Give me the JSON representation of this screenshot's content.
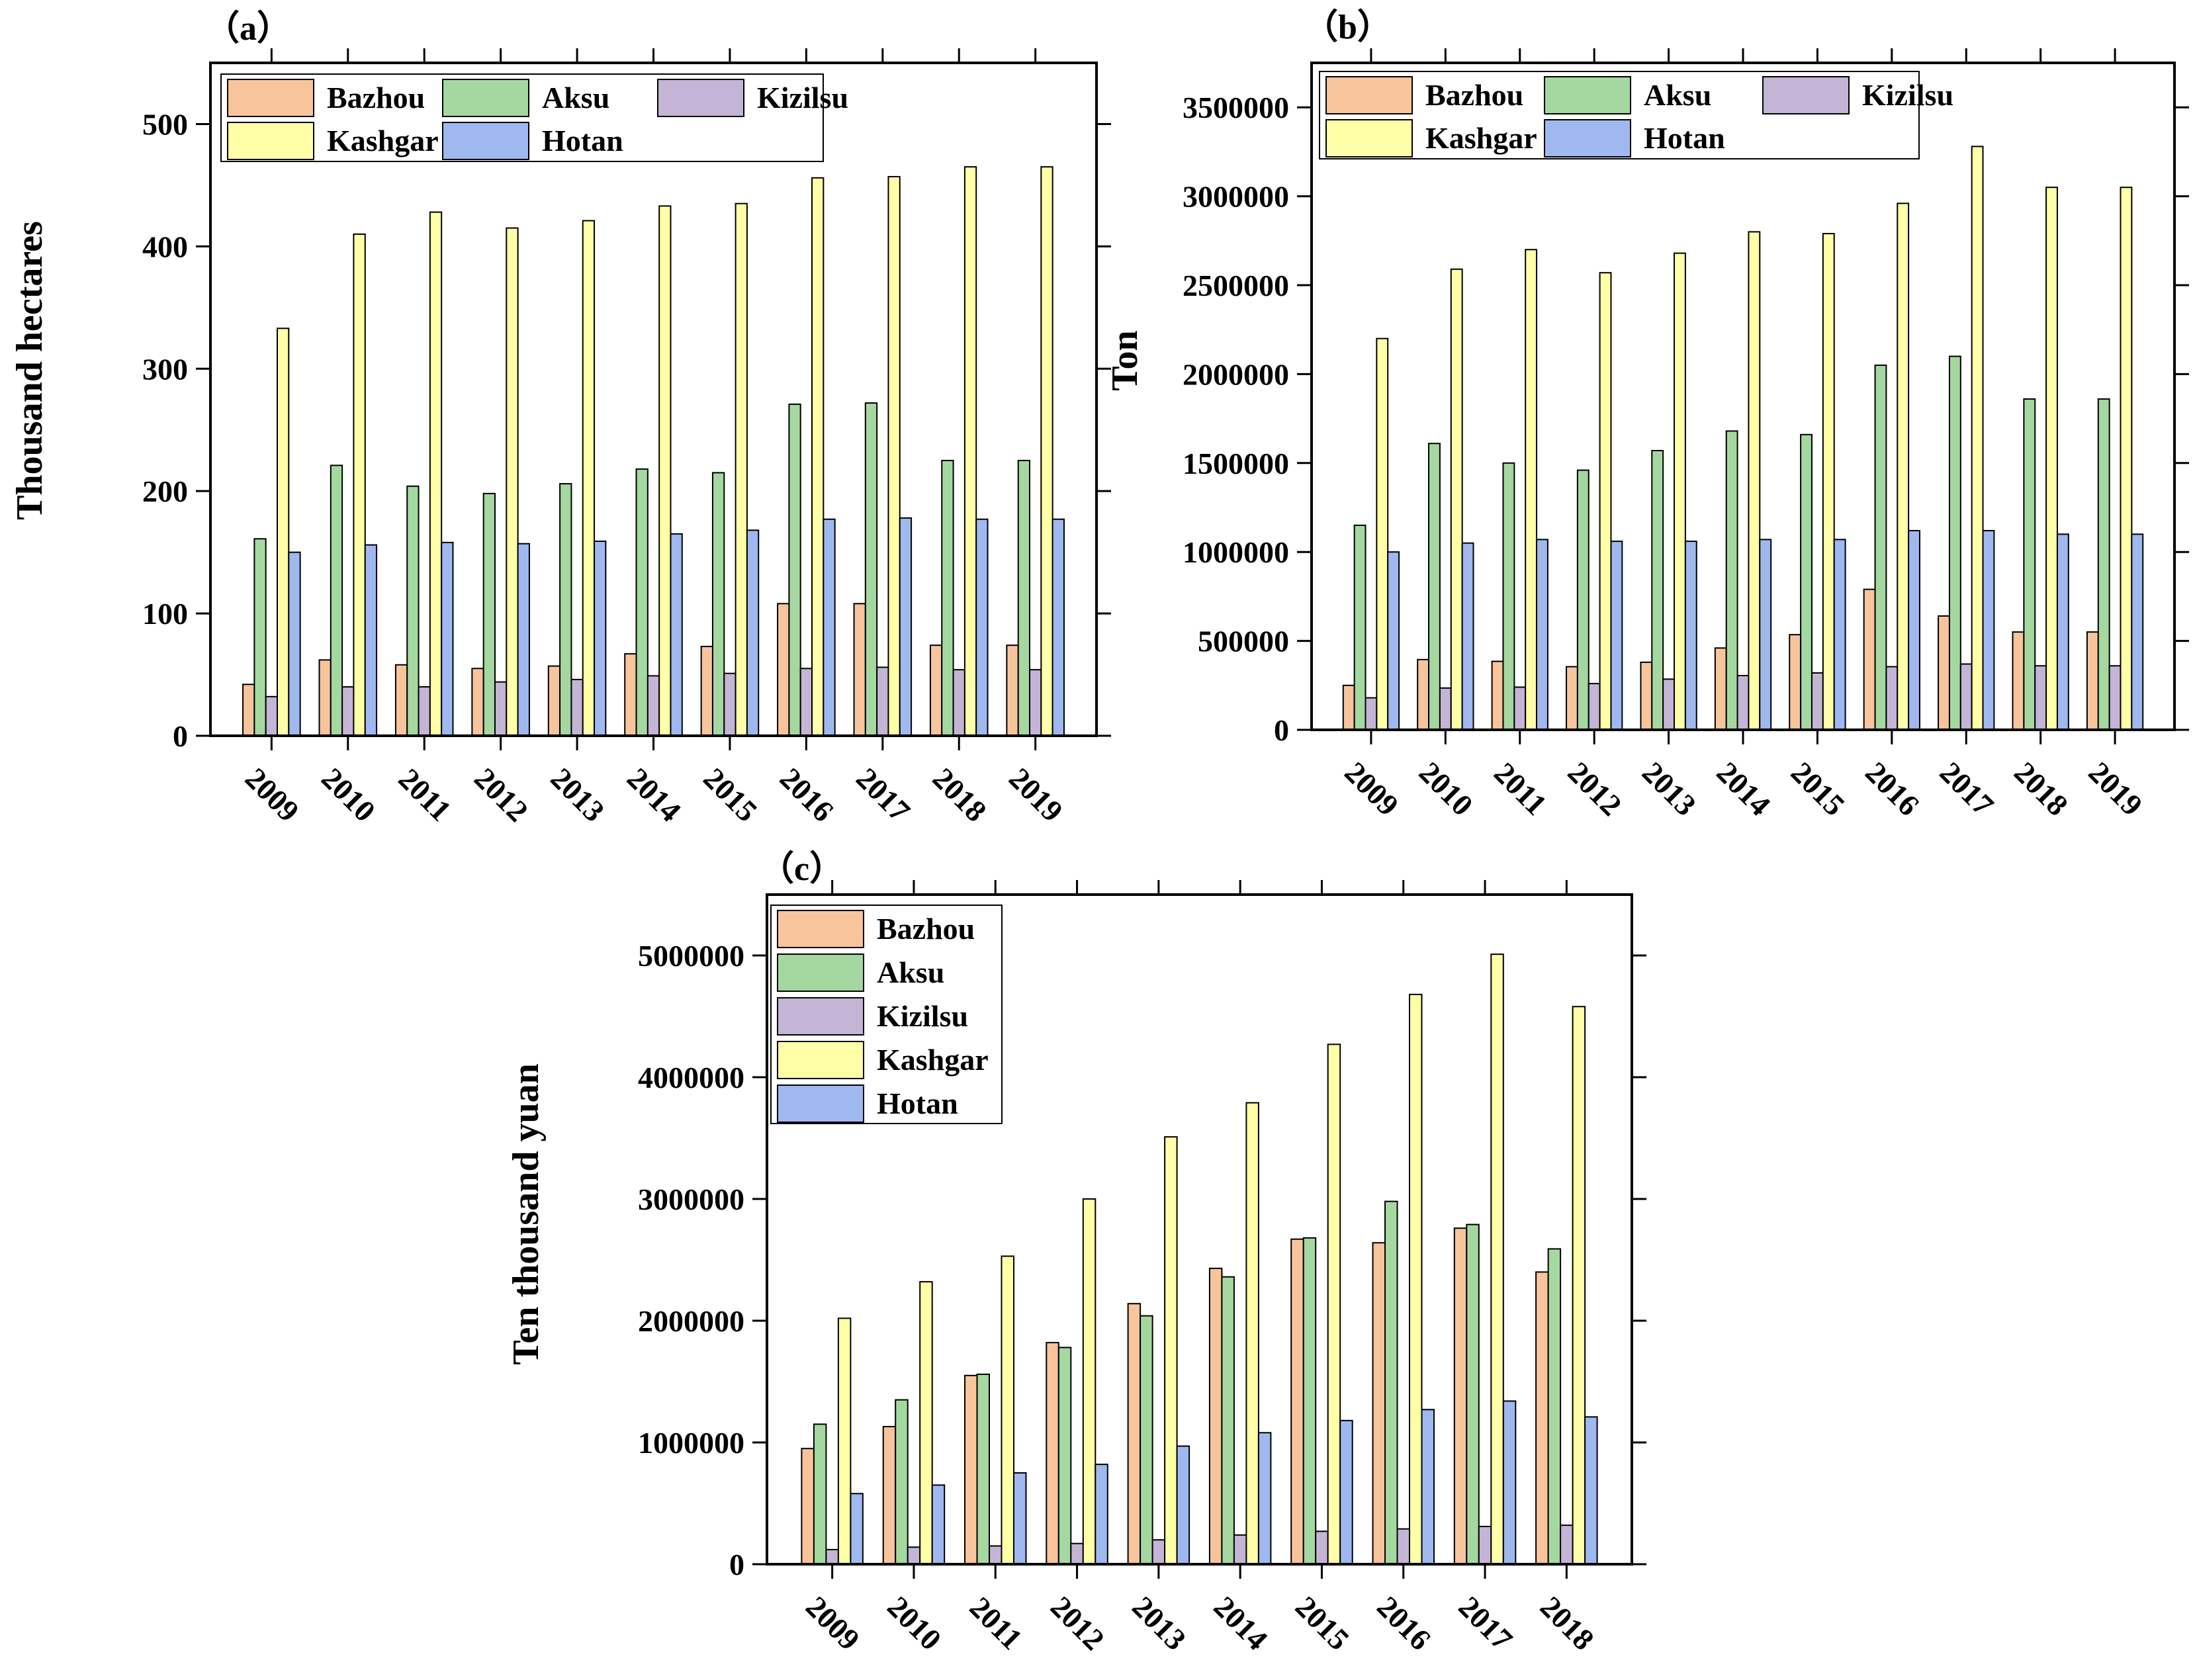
{
  "colors": {
    "Bazhou": "#f8c49c",
    "Aksu": "#a4d8a0",
    "Kizilsu": "#c4b4d6",
    "Kashgar": "#ffffa8",
    "Hotan": "#a0b8f0"
  },
  "chart_data": [
    {
      "type": "bar",
      "panel_label": "（a）",
      "ylabel": "Thousand hectares",
      "xlabel": "",
      "ylim": [
        0,
        550
      ],
      "yticks": [
        0,
        100,
        200,
        300,
        400,
        500
      ],
      "ytick_labels": [
        "0",
        "100",
        "200",
        "300",
        "400",
        "500"
      ],
      "legend_position": "top-left",
      "legend_columns": 3,
      "categories": [
        "2009",
        "2010",
        "2011",
        "2012",
        "2013",
        "2014",
        "2015",
        "2016",
        "2017",
        "2018",
        "2019"
      ],
      "series": [
        {
          "name": "Bazhou",
          "values": [
            42,
            62,
            58,
            55,
            57,
            67,
            73,
            108,
            108,
            74,
            74
          ]
        },
        {
          "name": "Aksu",
          "values": [
            161,
            221,
            204,
            198,
            206,
            218,
            215,
            271,
            272,
            225,
            225
          ]
        },
        {
          "name": "Kizilsu",
          "values": [
            32,
            40,
            40,
            44,
            46,
            49,
            51,
            55,
            56,
            54,
            54
          ]
        },
        {
          "name": "Kashgar",
          "values": [
            333,
            410,
            428,
            415,
            421,
            433,
            435,
            456,
            457,
            465,
            465
          ]
        },
        {
          "name": "Hotan",
          "values": [
            150,
            156,
            158,
            157,
            159,
            165,
            168,
            177,
            178,
            177,
            177
          ]
        }
      ]
    },
    {
      "type": "bar",
      "panel_label": "（b）",
      "ylabel": "Ton",
      "xlabel": "",
      "ylim": [
        0,
        3750000
      ],
      "yticks": [
        0,
        500000,
        1000000,
        1500000,
        2000000,
        2500000,
        3000000,
        3500000
      ],
      "ytick_labels": [
        "0",
        "500000",
        "1000000",
        "1500000",
        "2000000",
        "2500000",
        "3000000",
        "3500000"
      ],
      "legend_position": "top-left",
      "legend_columns": 3,
      "categories": [
        "2009",
        "2010",
        "2011",
        "2012",
        "2013",
        "2014",
        "2015",
        "2016",
        "2017",
        "2018",
        "2019"
      ],
      "series": [
        {
          "name": "Bazhou",
          "values": [
            250000,
            395000,
            385000,
            355000,
            380000,
            460000,
            535000,
            790000,
            640000,
            550000,
            550000
          ]
        },
        {
          "name": "Aksu",
          "values": [
            1150000,
            1610000,
            1500000,
            1460000,
            1570000,
            1680000,
            1660000,
            2050000,
            2100000,
            1860000,
            1860000
          ]
        },
        {
          "name": "Kizilsu",
          "values": [
            180000,
            235000,
            240000,
            260000,
            285000,
            305000,
            320000,
            355000,
            370000,
            360000,
            360000
          ]
        },
        {
          "name": "Kashgar",
          "values": [
            2200000,
            2590000,
            2700000,
            2570000,
            2680000,
            2800000,
            2790000,
            2960000,
            3280000,
            3050000,
            3050000
          ]
        },
        {
          "name": "Hotan",
          "values": [
            1000000,
            1050000,
            1070000,
            1060000,
            1060000,
            1070000,
            1070000,
            1120000,
            1120000,
            1100000,
            1100000
          ]
        }
      ]
    },
    {
      "type": "bar",
      "panel_label": "（c）",
      "ylabel": "Ten thousand yuan",
      "xlabel": "",
      "ylim": [
        0,
        5500000
      ],
      "yticks": [
        0,
        1000000,
        2000000,
        3000000,
        4000000,
        5000000
      ],
      "ytick_labels": [
        "0",
        "1000000",
        "2000000",
        "3000000",
        "4000000",
        "5000000"
      ],
      "legend_position": "top-left",
      "legend_columns": 1,
      "categories": [
        "2009",
        "2010",
        "2011",
        "2012",
        "2013",
        "2014",
        "2015",
        "2016",
        "2017",
        "2018"
      ],
      "series": [
        {
          "name": "Bazhou",
          "values": [
            950000,
            1130000,
            1550000,
            1820000,
            2140000,
            2430000,
            2670000,
            2640000,
            2760000,
            2400000
          ]
        },
        {
          "name": "Aksu",
          "values": [
            1150000,
            1350000,
            1560000,
            1780000,
            2040000,
            2360000,
            2680000,
            2980000,
            2790000,
            2590000
          ]
        },
        {
          "name": "Kizilsu",
          "values": [
            120000,
            140000,
            150000,
            170000,
            200000,
            240000,
            270000,
            290000,
            310000,
            320000
          ]
        },
        {
          "name": "Kashgar",
          "values": [
            2020000,
            2320000,
            2530000,
            3000000,
            3510000,
            3790000,
            4270000,
            4680000,
            5010000,
            4580000
          ]
        },
        {
          "name": "Hotan",
          "values": [
            580000,
            650000,
            750000,
            820000,
            970000,
            1080000,
            1180000,
            1270000,
            1340000,
            1210000
          ]
        }
      ]
    }
  ]
}
